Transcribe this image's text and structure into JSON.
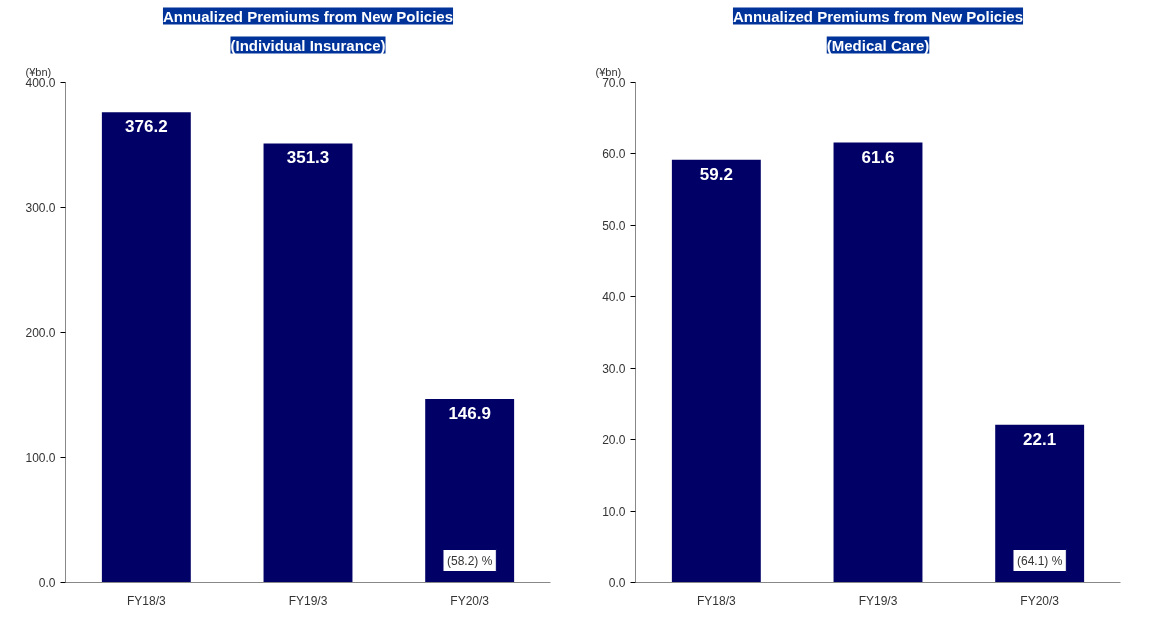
{
  "chart_data": [
    {
      "type": "bar",
      "title": "Annualized Premiums from New Policies",
      "subtitle": "(Individual Insurance)",
      "ylabel": "(¥bn)",
      "categories": [
        "FY18/3",
        "FY19/3",
        "FY20/3"
      ],
      "values": [
        376.2,
        351.3,
        146.9
      ],
      "color": "#000066",
      "ylim": [
        0,
        400
      ],
      "yticks": [
        {
          "value": 0,
          "label": "0.0"
        },
        {
          "value": 100,
          "label": "100.0"
        },
        {
          "value": 200,
          "label": "200.0"
        },
        {
          "value": 300,
          "label": "300.0"
        },
        {
          "value": 400,
          "label": "400.0"
        }
      ],
      "grid": false,
      "data_labels": true,
      "annotations": [
        "(58.2) %"
      ]
    },
    {
      "type": "bar",
      "title": "Annualized Premiums from New Policies",
      "subtitle": "(Medical Care)",
      "ylabel": "(¥bn)",
      "categories": [
        "FY18/3",
        "FY19/3",
        "FY20/3"
      ],
      "values": [
        59.2,
        61.6,
        22.1
      ],
      "color": "#000066",
      "ylim": [
        0,
        70
      ],
      "yticks": [
        {
          "value": 0,
          "label": "0.0"
        },
        {
          "value": 10,
          "label": "10.0"
        },
        {
          "value": 20,
          "label": "20.0"
        },
        {
          "value": 30,
          "label": "30.0"
        },
        {
          "value": 40,
          "label": "40.0"
        },
        {
          "value": 50,
          "label": "50.0"
        },
        {
          "value": 60,
          "label": "60.0"
        },
        {
          "value": 70,
          "label": "70.0"
        }
      ],
      "grid": false,
      "data_labels": true,
      "annotations": [
        "(64.1) %"
      ]
    }
  ]
}
